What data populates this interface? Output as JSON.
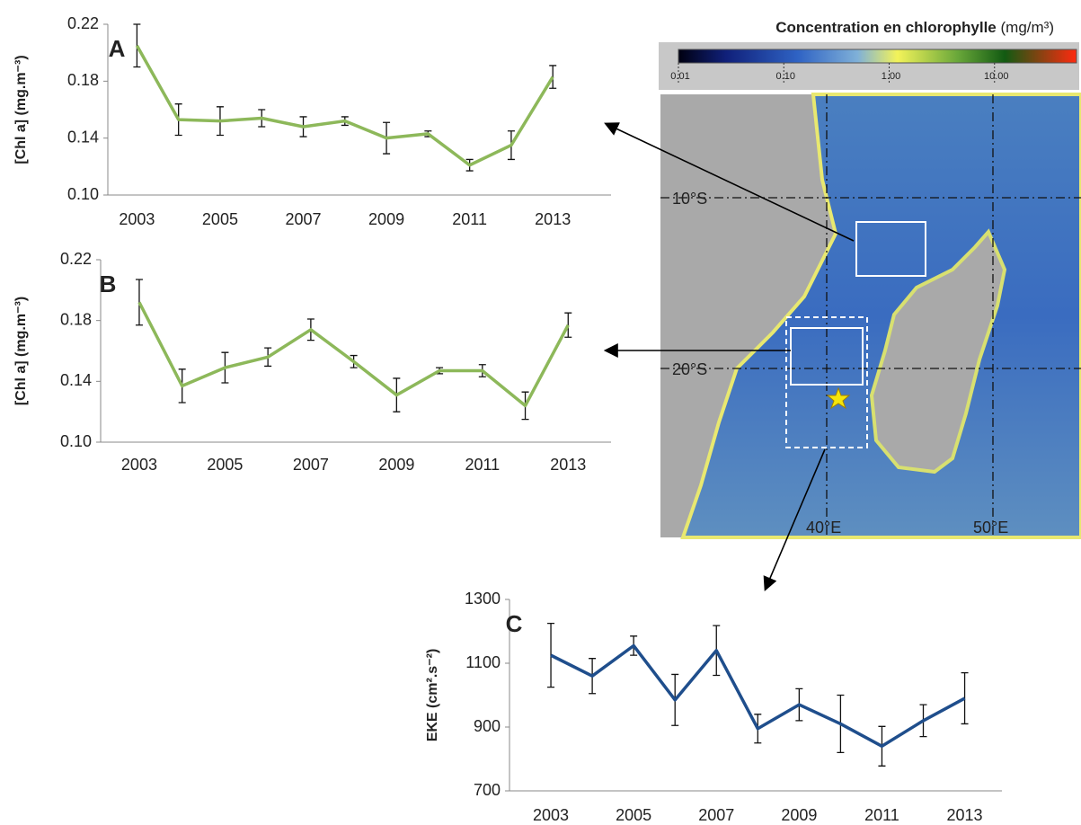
{
  "chart_data": [
    {
      "type": "line",
      "panel_label": "A",
      "y_label": "[Chl a] (mg.m⁻³)",
      "color": "#8db85a",
      "x": [
        2003,
        2004,
        2005,
        2006,
        2007,
        2008,
        2009,
        2010,
        2011,
        2012,
        2013
      ],
      "values": [
        0.205,
        0.153,
        0.152,
        0.154,
        0.148,
        0.152,
        0.14,
        0.143,
        0.121,
        0.135,
        0.183
      ],
      "errors": [
        0.015,
        0.011,
        0.01,
        0.006,
        0.007,
        0.003,
        0.011,
        0.002,
        0.004,
        0.01,
        0.008
      ],
      "xlim": [
        2002.3,
        2014.4
      ],
      "xticks": [
        2003,
        2005,
        2007,
        2009,
        2011,
        2013
      ],
      "ylim": [
        0.1,
        0.22
      ],
      "yticks": [
        {
          "value": 0.1,
          "label": "0.10"
        },
        0.14,
        0.18,
        0.22
      ]
    },
    {
      "type": "line",
      "panel_label": "B",
      "y_label": "[Chl a] (mg.m⁻³)",
      "color": "#8db85a",
      "x": [
        2003,
        2004,
        2005,
        2006,
        2007,
        2008,
        2009,
        2010,
        2011,
        2012,
        2013
      ],
      "values": [
        0.192,
        0.137,
        0.149,
        0.156,
        0.174,
        0.153,
        0.131,
        0.147,
        0.147,
        0.124,
        0.177
      ],
      "errors": [
        0.015,
        0.011,
        0.01,
        0.006,
        0.007,
        0.004,
        0.011,
        0.002,
        0.004,
        0.009,
        0.008
      ],
      "xlim": [
        2002.1,
        2014.0
      ],
      "xticks": [
        2003,
        2005,
        2007,
        2009,
        2011,
        2013
      ],
      "ylim": [
        0.1,
        0.22
      ],
      "yticks": [
        {
          "value": 0.1,
          "label": "0.10"
        },
        0.14,
        0.18,
        0.22
      ]
    },
    {
      "type": "line",
      "panel_label": "C",
      "y_label": "EKE (cm².s⁻²)",
      "color": "#1f4e8c",
      "x": [
        2003,
        2004,
        2005,
        2006,
        2007,
        2008,
        2009,
        2010,
        2011,
        2012,
        2013
      ],
      "values": [
        1125,
        1060,
        1155,
        985,
        1140,
        895,
        970,
        910,
        840,
        920,
        990
      ],
      "errors": [
        100,
        55,
        30,
        80,
        78,
        45,
        50,
        90,
        62,
        50,
        80
      ],
      "xlim": [
        2002.0,
        2013.9
      ],
      "xticks": [
        2003,
        2005,
        2007,
        2009,
        2011,
        2013
      ],
      "ylim": [
        700,
        1300
      ],
      "yticks": [
        700,
        900,
        1100,
        1300
      ]
    }
  ],
  "map": {
    "colorbar_title": "Concentration en chlorophylle",
    "colorbar_unit": "(mg/m³)",
    "colorbar_lim": [
      0.01,
      60
    ],
    "colorbar_scale": "log",
    "colorbar_ticks": [
      0.01,
      {
        "value": 0.1,
        "label": "0.10"
      },
      {
        "value": 1,
        "label": "1.00"
      },
      {
        "value": 10,
        "label": "10.00"
      }
    ],
    "lat_labels": [
      "10°S",
      "20°S"
    ],
    "lon_labels": [
      "40°E",
      "50°E"
    ]
  }
}
